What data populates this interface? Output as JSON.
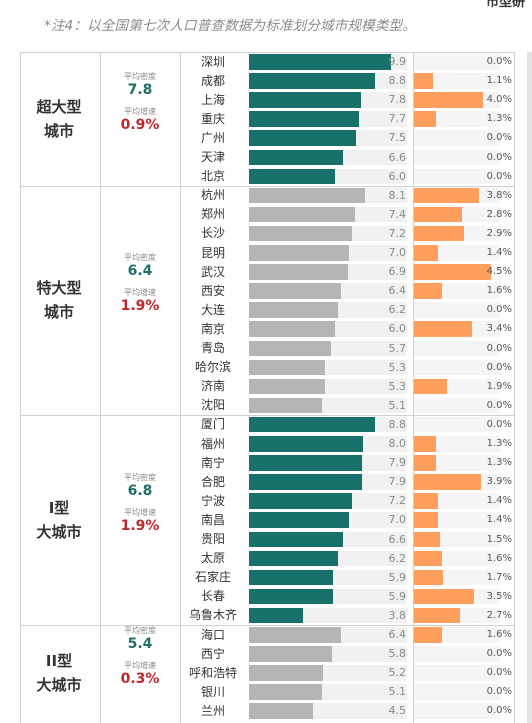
{
  "note": "*注4：以全国第七次人口普查数据为标准划分城市规模类型。",
  "top_right_label": "市型研",
  "colors": {
    "density_top": "#18706b",
    "density_rest": "#b5b5b5",
    "growth": "#ff9f5e",
    "metric_density": "#1f6f6a",
    "metric_growth": "#c0262e"
  },
  "chart_data": {
    "type": "bar",
    "series": [
      {
        "name": "density",
        "unit": "",
        "xlim": [
          0,
          10
        ]
      },
      {
        "name": "growth",
        "unit": "%",
        "xlim": [
          0,
          5
        ]
      }
    ],
    "groups": [
      {
        "name_lines": [
          "超大型",
          "城市"
        ],
        "avg_density_label": "平均密度",
        "avg_density": "7.8",
        "avg_growth_label": "平均增速",
        "avg_growth": "0.9%",
        "cities": [
          {
            "name": "深圳",
            "density": 9.9,
            "density_label": "9.9",
            "growth": 0.0,
            "growth_label": "0.0%",
            "highlight": true
          },
          {
            "name": "成都",
            "density": 8.8,
            "density_label": "8.8",
            "growth": 1.1,
            "growth_label": "1.1%",
            "highlight": true
          },
          {
            "name": "上海",
            "density": 7.8,
            "density_label": "7.8",
            "growth": 4.0,
            "growth_label": "4.0%",
            "highlight": true
          },
          {
            "name": "重庆",
            "density": 7.7,
            "density_label": "7.7",
            "growth": 1.3,
            "growth_label": "1.3%",
            "highlight": true
          },
          {
            "name": "广州",
            "density": 7.5,
            "density_label": "7.5",
            "growth": 0.0,
            "growth_label": "0.0%",
            "highlight": true
          },
          {
            "name": "天津",
            "density": 6.6,
            "density_label": "6.6",
            "growth": 0.0,
            "growth_label": "0.0%",
            "highlight": true
          },
          {
            "name": "北京",
            "density": 6.0,
            "density_label": "6.0",
            "growth": 0.0,
            "growth_label": "0.0%",
            "highlight": true
          }
        ]
      },
      {
        "name_lines": [
          "特大型",
          "城市"
        ],
        "avg_density_label": "平均密度",
        "avg_density": "6.4",
        "avg_growth_label": "平均增速",
        "avg_growth": "1.9%",
        "cities": [
          {
            "name": "杭州",
            "density": 8.1,
            "density_label": "8.1",
            "growth": 3.8,
            "growth_label": "3.8%",
            "highlight": false
          },
          {
            "name": "郑州",
            "density": 7.4,
            "density_label": "7.4",
            "growth": 2.8,
            "growth_label": "2.8%",
            "highlight": false
          },
          {
            "name": "长沙",
            "density": 7.2,
            "density_label": "7.2",
            "growth": 2.9,
            "growth_label": "2.9%",
            "highlight": false
          },
          {
            "name": "昆明",
            "density": 7.0,
            "density_label": "7.0",
            "growth": 1.4,
            "growth_label": "1.4%",
            "highlight": false
          },
          {
            "name": "武汉",
            "density": 6.9,
            "density_label": "6.9",
            "growth": 4.5,
            "growth_label": "4.5%",
            "highlight": false
          },
          {
            "name": "西安",
            "density": 6.4,
            "density_label": "6.4",
            "growth": 1.6,
            "growth_label": "1.6%",
            "highlight": false
          },
          {
            "name": "大连",
            "density": 6.2,
            "density_label": "6.2",
            "growth": 0.0,
            "growth_label": "0.0%",
            "highlight": false
          },
          {
            "name": "南京",
            "density": 6.0,
            "density_label": "6.0",
            "growth": 3.4,
            "growth_label": "3.4%",
            "highlight": false
          },
          {
            "name": "青岛",
            "density": 5.7,
            "density_label": "5.7",
            "growth": 0.0,
            "growth_label": "0.0%",
            "highlight": false
          },
          {
            "name": "哈尔滨",
            "density": 5.3,
            "density_label": "5.3",
            "growth": 0.0,
            "growth_label": "0.0%",
            "highlight": false
          },
          {
            "name": "济南",
            "density": 5.3,
            "density_label": "5.3",
            "growth": 1.9,
            "growth_label": "1.9%",
            "highlight": false
          },
          {
            "name": "沈阳",
            "density": 5.1,
            "density_label": "5.1",
            "growth": 0.0,
            "growth_label": "0.0%",
            "highlight": false
          }
        ]
      },
      {
        "name_lines": [
          "I型",
          "大城市"
        ],
        "avg_density_label": "平均密度",
        "avg_density": "6.8",
        "avg_growth_label": "平均增速",
        "avg_growth": "1.9%",
        "cities": [
          {
            "name": "厦门",
            "density": 8.8,
            "density_label": "8.8",
            "growth": 0.0,
            "growth_label": "0.0%",
            "highlight": true
          },
          {
            "name": "福州",
            "density": 8.0,
            "density_label": "8.0",
            "growth": 1.3,
            "growth_label": "1.3%",
            "highlight": true
          },
          {
            "name": "南宁",
            "density": 7.9,
            "density_label": "7.9",
            "growth": 1.3,
            "growth_label": "1.3%",
            "highlight": true
          },
          {
            "name": "合肥",
            "density": 7.9,
            "density_label": "7.9",
            "growth": 3.9,
            "growth_label": "3.9%",
            "highlight": true
          },
          {
            "name": "宁波",
            "density": 7.2,
            "density_label": "7.2",
            "growth": 1.4,
            "growth_label": "1.4%",
            "highlight": true
          },
          {
            "name": "南昌",
            "density": 7.0,
            "density_label": "7.0",
            "growth": 1.4,
            "growth_label": "1.4%",
            "highlight": true
          },
          {
            "name": "贵阳",
            "density": 6.6,
            "density_label": "6.6",
            "growth": 1.5,
            "growth_label": "1.5%",
            "highlight": true
          },
          {
            "name": "太原",
            "density": 6.2,
            "density_label": "6.2",
            "growth": 1.6,
            "growth_label": "1.6%",
            "highlight": true
          },
          {
            "name": "石家庄",
            "density": 5.9,
            "density_label": "5.9",
            "growth": 1.7,
            "growth_label": "1.7%",
            "highlight": true
          },
          {
            "name": "长春",
            "density": 5.9,
            "density_label": "5.9",
            "growth": 3.5,
            "growth_label": "3.5%",
            "highlight": true
          },
          {
            "name": "乌鲁木齐",
            "density": 3.8,
            "density_label": "3.8",
            "growth": 2.7,
            "growth_label": "2.7%",
            "highlight": true
          }
        ]
      },
      {
        "name_lines": [
          "II型",
          "大城市"
        ],
        "avg_density_label": "平均密度",
        "avg_density": "5.4",
        "avg_growth_label": "平均增速",
        "avg_growth": "0.3%",
        "cities": [
          {
            "name": "海口",
            "density": 6.4,
            "density_label": "6.4",
            "growth": 1.6,
            "growth_label": "1.6%",
            "highlight": false
          },
          {
            "name": "西宁",
            "density": 5.8,
            "density_label": "5.8",
            "growth": 0.0,
            "growth_label": "0.0%",
            "highlight": false
          },
          {
            "name": "呼和浩特",
            "density": 5.2,
            "density_label": "5.2",
            "growth": 0.0,
            "growth_label": "0.0%",
            "highlight": false
          },
          {
            "name": "银川",
            "density": 5.1,
            "density_label": "5.1",
            "growth": 0.0,
            "growth_label": "0.0%",
            "highlight": false
          },
          {
            "name": "兰州",
            "density": 4.5,
            "density_label": "4.5",
            "growth": 0.0,
            "growth_label": "0.0%",
            "highlight": false
          }
        ]
      }
    ]
  }
}
